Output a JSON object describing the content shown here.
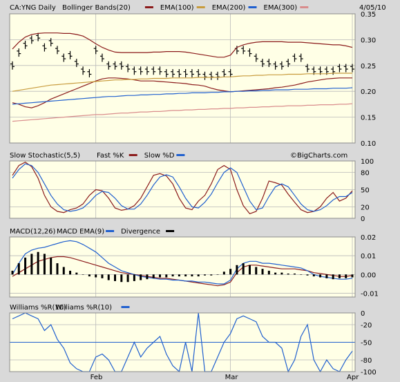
{
  "chart_data": [
    {
      "type": "line",
      "title": "CA:YNG Daily",
      "date_label": "4/05/10",
      "legend": [
        {
          "name": "CA:YNG Daily",
          "color": "#000000"
        },
        {
          "name": "Bollinger Bands(20)",
          "color": "#8b1a1a"
        },
        {
          "name": "EMA(100)",
          "color": "#c89b3c"
        },
        {
          "name": "EMA(200)",
          "color": "#1f5fcf"
        },
        {
          "name": "EMA(300)",
          "color": "#d98c8c"
        }
      ],
      "yticks": [
        "0.35",
        "0.30",
        "0.25",
        "0.20",
        "0.15",
        "0.10"
      ],
      "ylim": [
        0.1,
        0.35
      ],
      "grid": true,
      "series": [
        {
          "name": "CA:YNG Daily",
          "color": "#000000",
          "values": [
            0.25,
            0.275,
            0.29,
            0.3,
            0.305,
            0.285,
            0.295,
            0.28,
            0.265,
            0.27,
            0.255,
            0.24,
            0.235,
            0.28,
            0.265,
            0.25,
            0.25,
            0.25,
            0.245,
            0.24,
            0.24,
            0.24,
            0.24,
            0.24,
            0.235,
            0.235,
            0.235,
            0.235,
            0.235,
            0.235,
            0.23,
            0.23,
            0.23,
            0.235,
            0.235,
            0.28,
            0.28,
            0.275,
            0.265,
            0.255,
            0.255,
            0.25,
            0.25,
            0.255,
            0.265,
            0.265,
            0.245,
            0.24,
            0.24,
            0.24,
            0.24,
            0.245,
            0.245,
            0.245
          ]
        },
        {
          "name": "Bollinger Upper",
          "color": "#8b1a1a",
          "values": [
            0.282,
            0.295,
            0.305,
            0.31,
            0.312,
            0.313,
            0.313,
            0.313,
            0.312,
            0.312,
            0.31,
            0.307,
            0.3,
            0.292,
            0.285,
            0.28,
            0.276,
            0.275,
            0.275,
            0.275,
            0.275,
            0.275,
            0.276,
            0.276,
            0.277,
            0.277,
            0.277,
            0.276,
            0.274,
            0.272,
            0.27,
            0.268,
            0.266,
            0.266,
            0.27,
            0.285,
            0.29,
            0.293,
            0.295,
            0.296,
            0.296,
            0.296,
            0.296,
            0.295,
            0.295,
            0.295,
            0.294,
            0.293,
            0.292,
            0.291,
            0.29,
            0.29,
            0.288,
            0.285
          ]
        },
        {
          "name": "Bollinger Lower",
          "color": "#8b1a1a",
          "values": [
            0.178,
            0.175,
            0.17,
            0.168,
            0.172,
            0.178,
            0.185,
            0.19,
            0.195,
            0.2,
            0.205,
            0.21,
            0.215,
            0.22,
            0.224,
            0.226,
            0.226,
            0.225,
            0.224,
            0.222,
            0.22,
            0.22,
            0.22,
            0.219,
            0.218,
            0.217,
            0.216,
            0.215,
            0.213,
            0.212,
            0.21,
            0.206,
            0.203,
            0.201,
            0.199,
            0.2,
            0.201,
            0.202,
            0.203,
            0.204,
            0.205,
            0.207,
            0.208,
            0.21,
            0.212,
            0.215,
            0.218,
            0.22,
            0.222,
            0.224,
            0.225,
            0.226,
            0.226,
            0.226
          ]
        },
        {
          "name": "EMA(100)",
          "color": "#c89b3c",
          "values": [
            0.2,
            0.202,
            0.204,
            0.206,
            0.208,
            0.21,
            0.212,
            0.213,
            0.214,
            0.215,
            0.216,
            0.217,
            0.218,
            0.219,
            0.22,
            0.221,
            0.222,
            0.222,
            0.223,
            0.223,
            0.224,
            0.224,
            0.225,
            0.225,
            0.225,
            0.226,
            0.226,
            0.226,
            0.226,
            0.227,
            0.227,
            0.227,
            0.227,
            0.228,
            0.228,
            0.229,
            0.23,
            0.23,
            0.231,
            0.231,
            0.232,
            0.232,
            0.232,
            0.233,
            0.233,
            0.233,
            0.234,
            0.234,
            0.234,
            0.234,
            0.235,
            0.235,
            0.235,
            0.235
          ]
        },
        {
          "name": "EMA(200)",
          "color": "#1f5fcf",
          "values": [
            0.175,
            0.176,
            0.177,
            0.178,
            0.179,
            0.18,
            0.181,
            0.182,
            0.183,
            0.184,
            0.185,
            0.186,
            0.187,
            0.188,
            0.189,
            0.19,
            0.19,
            0.191,
            0.192,
            0.192,
            0.193,
            0.193,
            0.194,
            0.194,
            0.195,
            0.195,
            0.196,
            0.196,
            0.197,
            0.197,
            0.197,
            0.198,
            0.198,
            0.199,
            0.199,
            0.2,
            0.2,
            0.201,
            0.201,
            0.202,
            0.202,
            0.203,
            0.203,
            0.203,
            0.204,
            0.204,
            0.204,
            0.205,
            0.205,
            0.205,
            0.206,
            0.206,
            0.206,
            0.207
          ]
        },
        {
          "name": "EMA(300)",
          "color": "#d98c8c",
          "values": [
            0.142,
            0.143,
            0.144,
            0.145,
            0.146,
            0.147,
            0.148,
            0.149,
            0.15,
            0.151,
            0.152,
            0.153,
            0.154,
            0.155,
            0.155,
            0.156,
            0.157,
            0.158,
            0.158,
            0.159,
            0.16,
            0.16,
            0.161,
            0.161,
            0.162,
            0.163,
            0.163,
            0.164,
            0.164,
            0.165,
            0.165,
            0.166,
            0.166,
            0.167,
            0.167,
            0.168,
            0.168,
            0.169,
            0.169,
            0.17,
            0.17,
            0.171,
            0.171,
            0.172,
            0.172,
            0.172,
            0.173,
            0.173,
            0.174,
            0.174,
            0.174,
            0.175,
            0.175,
            0.176
          ]
        }
      ]
    },
    {
      "type": "line",
      "title": "Slow Stochastic(5,5)",
      "legend": [
        {
          "name": "Fast %K",
          "color": "#8b1a1a"
        },
        {
          "name": "Slow %D",
          "color": "#1f5fcf"
        }
      ],
      "watermark": "©BigCharts.com",
      "yticks": [
        "100",
        "80",
        "50",
        "20",
        "0"
      ],
      "ylim": [
        0,
        100
      ],
      "grid": true,
      "series": [
        {
          "name": "Fast %K",
          "color": "#8b1a1a",
          "values": [
            75,
            92,
            98,
            90,
            70,
            40,
            20,
            12,
            10,
            15,
            18,
            25,
            40,
            50,
            48,
            35,
            18,
            14,
            16,
            22,
            35,
            55,
            75,
            78,
            74,
            60,
            35,
            18,
            15,
            30,
            40,
            60,
            85,
            92,
            85,
            50,
            22,
            8,
            12,
            35,
            65,
            62,
            58,
            42,
            28,
            15,
            10,
            12,
            20,
            35,
            45,
            30,
            35,
            48
          ]
        },
        {
          "name": "Slow %D",
          "color": "#1f5fcf",
          "values": [
            70,
            85,
            95,
            92,
            80,
            60,
            40,
            25,
            15,
            12,
            14,
            18,
            28,
            40,
            47,
            45,
            35,
            22,
            16,
            16,
            25,
            40,
            58,
            72,
            76,
            72,
            55,
            35,
            20,
            18,
            28,
            42,
            62,
            80,
            88,
            80,
            55,
            30,
            15,
            18,
            38,
            55,
            60,
            55,
            40,
            25,
            15,
            12,
            15,
            22,
            32,
            38,
            38,
            45
          ]
        }
      ]
    },
    {
      "type": "bar",
      "title": "MACD(12,26)",
      "legend": [
        {
          "name": "MACD EMA(9)",
          "color": "#1f5fcf"
        },
        {
          "name": "Divergence",
          "color": "#000000"
        }
      ],
      "yticks": [
        "0.02",
        "0.01",
        "0.00",
        "-0.01"
      ],
      "ylim": [
        -0.012,
        0.02
      ],
      "grid": true,
      "series": [
        {
          "name": "MACD",
          "color": "#8b1a1a",
          "values": [
            -0.001,
            0.001,
            0.003,
            0.005,
            0.007,
            0.008,
            0.009,
            0.0095,
            0.0095,
            0.009,
            0.008,
            0.007,
            0.006,
            0.005,
            0.004,
            0.003,
            0.002,
            0.001,
            0.0005,
            0.0,
            -0.0005,
            -0.001,
            -0.0015,
            -0.002,
            -0.002,
            -0.0025,
            -0.003,
            -0.0035,
            -0.004,
            -0.0045,
            -0.005,
            -0.0055,
            -0.006,
            -0.0055,
            -0.004,
            0.001,
            0.004,
            0.005,
            0.005,
            0.0045,
            0.004,
            0.0035,
            0.003,
            0.003,
            0.003,
            0.0025,
            0.002,
            0.001,
            0.0005,
            0.0,
            -0.0005,
            -0.001,
            -0.001,
            -0.0005
          ]
        },
        {
          "name": "MACD EMA(9)",
          "color": "#1f5fcf",
          "values": [
            0.0,
            0.006,
            0.011,
            0.013,
            0.014,
            0.0145,
            0.0155,
            0.0165,
            0.0175,
            0.018,
            0.0175,
            0.016,
            0.014,
            0.012,
            0.009,
            0.006,
            0.004,
            0.002,
            0.001,
            0.0,
            -0.001,
            -0.0015,
            -0.002,
            -0.0025,
            -0.0025,
            -0.003,
            -0.003,
            -0.0035,
            -0.0035,
            -0.004,
            -0.004,
            -0.0045,
            -0.005,
            -0.005,
            -0.003,
            0.003,
            0.006,
            0.007,
            0.007,
            0.006,
            0.006,
            0.0055,
            0.005,
            0.0045,
            0.004,
            0.0035,
            0.002,
            0.0,
            -0.001,
            -0.0015,
            -0.002,
            -0.0025,
            -0.0025,
            -0.002
          ]
        },
        {
          "name": "Divergence",
          "color": "#000000",
          "values": [
            0.002,
            0.006,
            0.009,
            0.011,
            0.012,
            0.011,
            0.009,
            0.006,
            0.004,
            0.002,
            0.001,
            0.0,
            -0.001,
            -0.0015,
            -0.002,
            -0.003,
            -0.0035,
            -0.004,
            -0.004,
            -0.0035,
            -0.003,
            -0.0025,
            -0.002,
            -0.0015,
            -0.0015,
            -0.001,
            -0.001,
            -0.001,
            -0.001,
            -0.001,
            -0.0005,
            -0.0005,
            0.0,
            0.0015,
            0.003,
            0.005,
            0.006,
            0.005,
            0.004,
            0.003,
            0.002,
            0.001,
            0.001,
            0.0005,
            0.0005,
            0.0,
            -0.0005,
            -0.001,
            -0.0015,
            -0.002,
            -0.0025,
            -0.002,
            -0.002,
            -0.0015
          ]
        }
      ]
    },
    {
      "type": "line",
      "title": "Williams %R(10)",
      "legend": [
        {
          "name": "Williams %R(10)",
          "color": "#1f5fcf"
        }
      ],
      "yticks": [
        "0",
        "-20",
        "-50",
        "-80",
        "-100"
      ],
      "ylim": [
        -100,
        0
      ],
      "reference_line": -50,
      "grid": true,
      "series": [
        {
          "name": "Williams %R(10)",
          "color": "#1f5fcf",
          "values": [
            -10,
            -5,
            0,
            -5,
            -10,
            -30,
            -20,
            -45,
            -60,
            -85,
            -95,
            -100,
            -100,
            -75,
            -70,
            -80,
            -100,
            -100,
            -75,
            -50,
            -75,
            -60,
            -50,
            -40,
            -70,
            -90,
            -100,
            -50,
            -100,
            0,
            -100,
            -100,
            -75,
            -50,
            -35,
            -10,
            -5,
            -10,
            -15,
            -40,
            -50,
            -50,
            -60,
            -100,
            -80,
            -40,
            -20,
            -80,
            -100,
            -80,
            -95,
            -100,
            -80,
            -65
          ]
        }
      ]
    }
  ],
  "x_labels": [
    "Feb",
    "Mar",
    "Apr"
  ]
}
